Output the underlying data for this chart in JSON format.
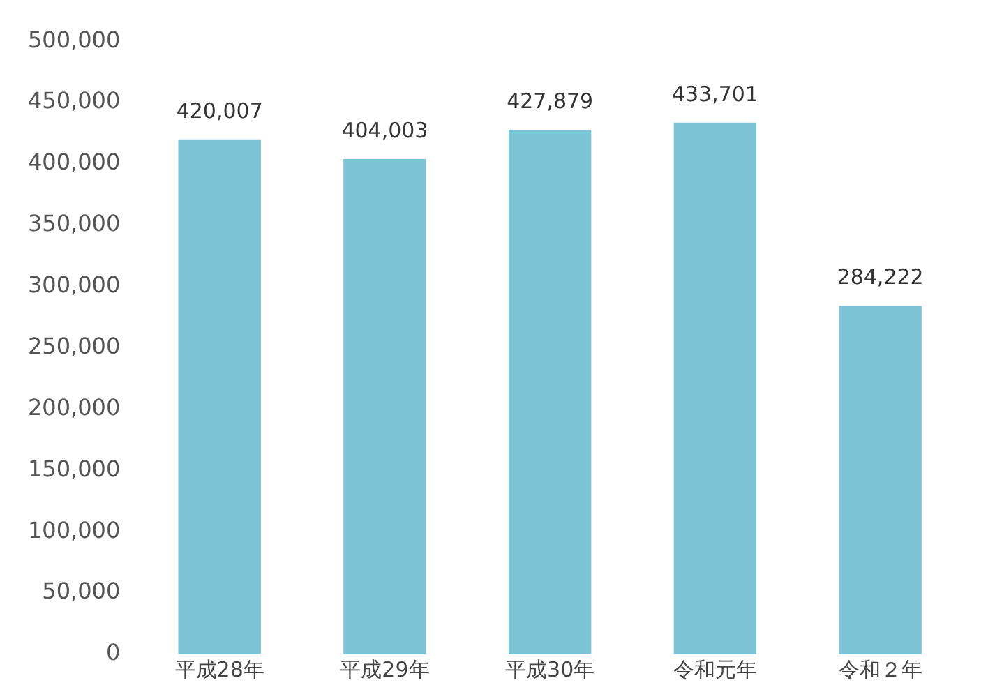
{
  "chart_data": {
    "type": "bar",
    "categories": [
      "平成28年",
      "平成29年",
      "平成30年",
      "令和元年",
      "令和２年"
    ],
    "values": [
      420007,
      404003,
      427879,
      433701,
      284222
    ],
    "value_labels": [
      "420,007",
      "404,003",
      "427,879",
      "433,701",
      "284,222"
    ],
    "color": "#7cc3d5",
    "ylim": [
      0,
      500000
    ],
    "yticks": [
      {
        "value": 0,
        "label": "0"
      },
      {
        "value": 50000,
        "label": "50,000"
      },
      {
        "value": 100000,
        "label": "100,000"
      },
      {
        "value": 150000,
        "label": "150,000"
      },
      {
        "value": 200000,
        "label": "200,000"
      },
      {
        "value": 250000,
        "label": "250,000"
      },
      {
        "value": 300000,
        "label": "300,000"
      },
      {
        "value": 350000,
        "label": "350,000"
      },
      {
        "value": 400000,
        "label": "400,000"
      },
      {
        "value": 450000,
        "label": "450,000"
      },
      {
        "value": 500000,
        "label": "500,000"
      }
    ],
    "grid": false,
    "legend": false
  }
}
